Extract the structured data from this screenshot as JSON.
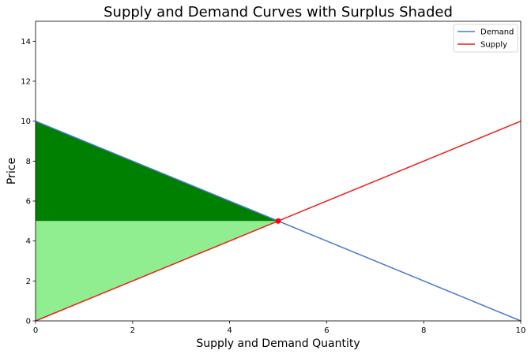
{
  "chart_data": {
    "type": "line",
    "title": "Supply and Demand Curves with Surplus Shaded",
    "xlabel": "Supply and Demand Quantity",
    "ylabel": "Price",
    "xlim": [
      0,
      10
    ],
    "ylim": [
      0,
      15
    ],
    "x_ticks": [
      "0",
      "2",
      "4",
      "6",
      "8",
      "10"
    ],
    "y_ticks": [
      "0",
      "2",
      "4",
      "6",
      "8",
      "10",
      "12",
      "14"
    ],
    "grid": false,
    "legend_position": "top-right",
    "series": [
      {
        "name": "Demand",
        "color": "#4878cf",
        "x": [
          0,
          10
        ],
        "y": [
          10,
          0
        ]
      },
      {
        "name": "Supply",
        "color": "#e8211a",
        "x": [
          0,
          10
        ],
        "y": [
          0,
          10
        ]
      }
    ],
    "equilibrium": {
      "x": 5,
      "y": 5,
      "color": "#ff0000"
    },
    "shaded_regions": [
      {
        "color": "#008000",
        "x": [
          0,
          5,
          0
        ],
        "y": [
          10,
          5,
          5
        ]
      },
      {
        "color": "#90ee90",
        "x": [
          0,
          5,
          0
        ],
        "y": [
          5,
          5,
          0
        ]
      }
    ]
  }
}
